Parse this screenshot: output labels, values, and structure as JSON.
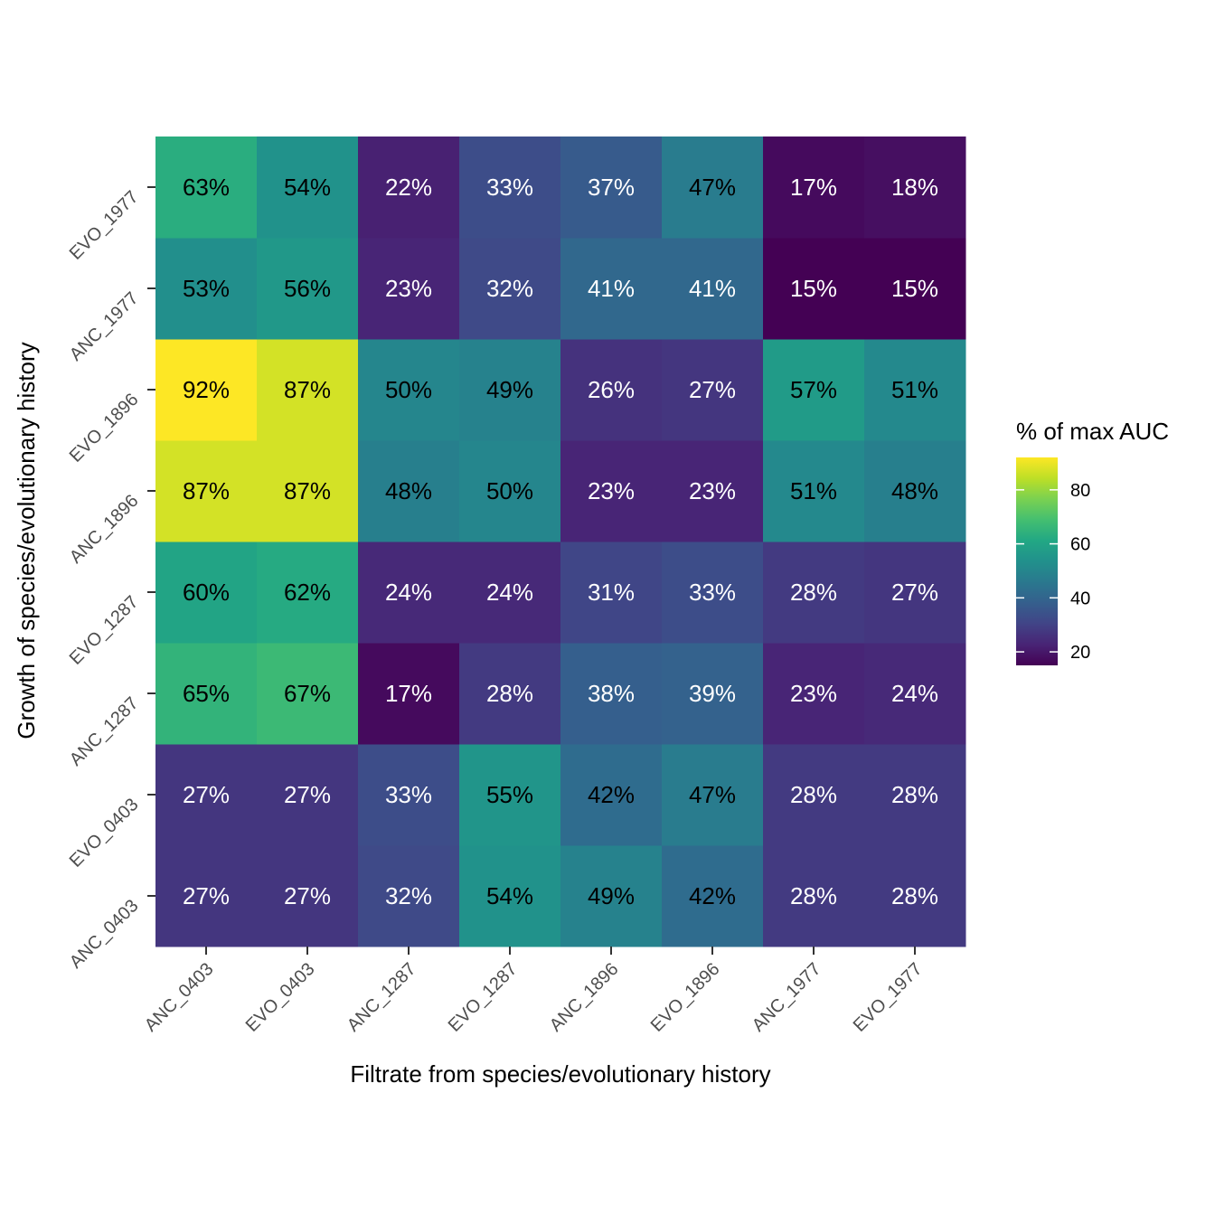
{
  "chart_data": {
    "type": "heatmap",
    "title": "",
    "xlabel": "Filtrate from species/evolutionary history",
    "ylabel": "Growth of species/evolutionary history",
    "x_categories": [
      "ANC_0403",
      "EVO_0403",
      "ANC_1287",
      "EVO_1287",
      "ANC_1896",
      "EVO_1896",
      "ANC_1977",
      "EVO_1977"
    ],
    "y_categories": [
      "ANC_0403",
      "EVO_0403",
      "ANC_1287",
      "EVO_1287",
      "ANC_1896",
      "EVO_1896",
      "ANC_1977",
      "EVO_1977"
    ],
    "values": [
      [
        27,
        27,
        32,
        54,
        49,
        42,
        28,
        28
      ],
      [
        27,
        27,
        33,
        55,
        42,
        47,
        28,
        28
      ],
      [
        65,
        67,
        17,
        28,
        38,
        39,
        23,
        24
      ],
      [
        60,
        62,
        24,
        24,
        31,
        33,
        28,
        27
      ],
      [
        87,
        87,
        48,
        50,
        23,
        23,
        51,
        48
      ],
      [
        92,
        87,
        50,
        49,
        26,
        27,
        57,
        51
      ],
      [
        53,
        56,
        23,
        32,
        41,
        41,
        15,
        15
      ],
      [
        63,
        54,
        22,
        33,
        37,
        47,
        17,
        18
      ]
    ],
    "value_suffix": "%",
    "colorscale": "viridis",
    "color_range": [
      15,
      92
    ],
    "legend": {
      "title": "% of max AUC",
      "ticks": [
        20,
        40,
        60,
        80
      ],
      "placement": "right"
    }
  }
}
